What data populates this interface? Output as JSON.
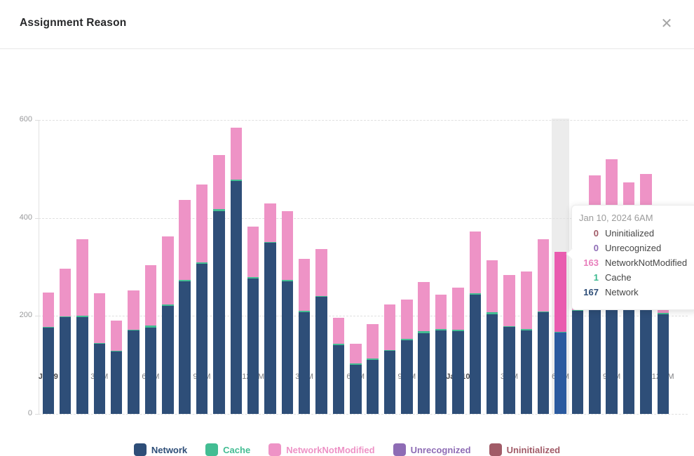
{
  "header": {
    "title": "Assignment Reason",
    "close_icon": "✕"
  },
  "colors": {
    "network": "#2E4E78",
    "cache": "#43BD93",
    "network_not_modified": "#EE93C6",
    "unrecognized": "#8E6CB5",
    "uninitialized": "#A15B67",
    "network_highlight": "#2B5A9F",
    "network_not_modified_highlight": "#E95CAF",
    "highlight_band": "#ECECEC"
  },
  "chart_data": {
    "type": "bar",
    "stacked": true,
    "title": "Assignment Reason",
    "xlabel": "",
    "ylabel": "",
    "ylim": [
      0,
      600
    ],
    "y_ticks": [
      0,
      200,
      400,
      600
    ],
    "grid": "dashed-horizontal",
    "legend_position": "bottom",
    "x_tick_labels": [
      "Jan 9",
      "3 AM",
      "6 AM",
      "9 AM",
      "12 PM",
      "3 PM",
      "6 PM",
      "9 PM",
      "Jan 10",
      "3 AM",
      "6 AM",
      "9 AM",
      "12 PM"
    ],
    "x_tick_every": 3,
    "categories": [
      "Jan 9 12 AM",
      "Jan 9 1 AM",
      "Jan 9 2 AM",
      "Jan 9 3 AM",
      "Jan 9 4 AM",
      "Jan 9 5 AM",
      "Jan 9 6 AM",
      "Jan 9 7 AM",
      "Jan 9 8 AM",
      "Jan 9 9 AM",
      "Jan 9 10 AM",
      "Jan 9 11 AM",
      "Jan 9 12 PM",
      "Jan 9 1 PM",
      "Jan 9 2 PM",
      "Jan 9 3 PM",
      "Jan 9 4 PM",
      "Jan 9 5 PM",
      "Jan 9 6 PM",
      "Jan 9 7 PM",
      "Jan 9 8 PM",
      "Jan 9 9 PM",
      "Jan 9 10 PM",
      "Jan 9 11 PM",
      "Jan 10 12 AM",
      "Jan 10 1 AM",
      "Jan 10 2 AM",
      "Jan 10 3 AM",
      "Jan 10 4 AM",
      "Jan 10 5 AM",
      "Jan 10 6 AM",
      "Jan 10 7 AM",
      "Jan 10 8 AM",
      "Jan 10 9 AM",
      "Jan 10 10 AM",
      "Jan 10 11 AM",
      "Jan 10 12 PM"
    ],
    "series": [
      {
        "name": "Network",
        "color": "#2E4E78",
        "values": [
          176,
          197,
          197,
          143,
          127,
          170,
          176,
          220,
          270,
          306,
          414,
          476,
          277,
          349,
          271,
          208,
          239,
          141,
          101,
          111,
          129,
          150,
          165,
          170,
          169,
          243,
          204,
          177,
          171,
          207,
          167,
          210,
          228,
          228,
          228,
          228,
          204
        ]
      },
      {
        "name": "Cache",
        "color": "#43BD93",
        "values": [
          2,
          2,
          3,
          2,
          2,
          2,
          5,
          3,
          3,
          3,
          4,
          2,
          2,
          2,
          2,
          3,
          2,
          2,
          2,
          2,
          2,
          3,
          4,
          3,
          3,
          3,
          3,
          2,
          2,
          2,
          1,
          2,
          2,
          2,
          2,
          2,
          2
        ]
      },
      {
        "name": "NetworkNotModified",
        "color": "#EE93C6",
        "values": [
          70,
          98,
          156,
          101,
          62,
          80,
          123,
          140,
          164,
          160,
          111,
          107,
          104,
          79,
          141,
          105,
          96,
          53,
          40,
          70,
          92,
          81,
          101,
          70,
          86,
          126,
          106,
          105,
          118,
          148,
          163,
          73,
          257,
          290,
          242,
          260,
          24
        ]
      },
      {
        "name": "Unrecognized",
        "color": "#8E6CB5",
        "values": [
          0,
          0,
          0,
          0,
          0,
          0,
          0,
          0,
          0,
          0,
          0,
          0,
          0,
          0,
          0,
          0,
          0,
          0,
          0,
          0,
          0,
          0,
          0,
          0,
          0,
          0,
          0,
          0,
          0,
          0,
          0,
          0,
          0,
          0,
          0,
          0,
          0
        ]
      },
      {
        "name": "Uninitialized",
        "color": "#A15B67",
        "values": [
          0,
          0,
          0,
          0,
          0,
          0,
          0,
          0,
          0,
          0,
          0,
          0,
          0,
          0,
          0,
          0,
          0,
          0,
          0,
          0,
          0,
          0,
          0,
          0,
          0,
          0,
          0,
          0,
          0,
          0,
          0,
          0,
          0,
          0,
          0,
          0,
          0
        ]
      }
    ],
    "highlighted_index": 30,
    "highlight_colors": {
      "Network": "#2B5A9F",
      "NetworkNotModified": "#E95CAF"
    }
  },
  "tooltip": {
    "title": "Jan 10, 2024 6AM",
    "rows": [
      {
        "value": "0",
        "label": "Uninitialized",
        "color": "#A15B67"
      },
      {
        "value": "0",
        "label": "Unrecognized",
        "color": "#8E6CB5"
      },
      {
        "value": "163",
        "label": "NetworkNotModified",
        "color": "#E87FBC"
      },
      {
        "value": "1",
        "label": "Cache",
        "color": "#3BB98E"
      },
      {
        "value": "167",
        "label": "Network",
        "color": "#2E4E78"
      }
    ]
  },
  "legend": {
    "items": [
      {
        "label": "Network",
        "color": "#2E4E78"
      },
      {
        "label": "Cache",
        "color": "#43BD93"
      },
      {
        "label": "NetworkNotModified",
        "color": "#EE93C6"
      },
      {
        "label": "Unrecognized",
        "color": "#8E6CB5"
      },
      {
        "label": "Uninitialized",
        "color": "#A15B67"
      }
    ]
  }
}
